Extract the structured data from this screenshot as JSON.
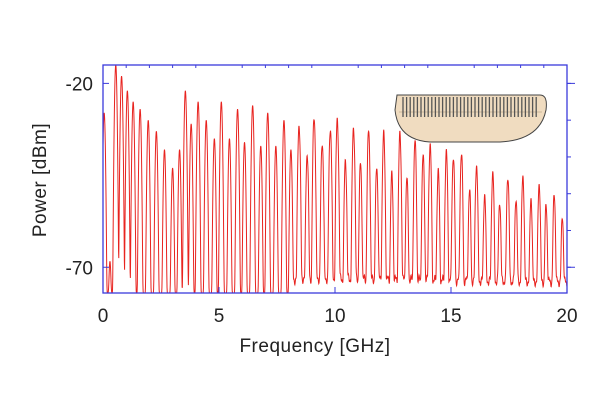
{
  "chart_data": {
    "type": "line",
    "title": "",
    "xlabel": "Frequency [GHz]",
    "ylabel": "Power [dBm]",
    "xlim": [
      0,
      20
    ],
    "ylim": [
      -77,
      -15
    ],
    "x_ticks": [
      {
        "value": 0,
        "label": "0"
      },
      {
        "value": 5,
        "label": "5"
      },
      {
        "value": 10,
        "label": "10"
      },
      {
        "value": 15,
        "label": "15"
      },
      {
        "value": 20,
        "label": "20"
      }
    ],
    "y_ticks": [
      {
        "value": -20,
        "label": "-20"
      },
      {
        "value": -70,
        "label": "-70"
      }
    ],
    "grid": false,
    "legend": "none",
    "colors": {
      "trace": "#e8231f",
      "frame": "#3a3adb",
      "comb_body": "#f0dcc0",
      "comb_teeth": "#555555"
    },
    "inset_icon": "comb-illustration-icon",
    "series": [
      {
        "peaks_x": [
          0.05,
          0.3,
          0.55,
          0.8,
          1.05,
          1.3,
          1.6,
          1.95,
          2.3,
          2.65,
          3.0,
          3.3,
          3.55,
          3.8,
          4.1,
          4.45,
          4.8,
          5.1,
          5.45,
          5.8,
          6.1,
          6.45,
          6.8,
          7.1,
          7.45,
          7.8,
          8.1,
          8.45,
          8.8,
          9.1,
          9.45,
          9.8,
          10.1,
          10.45,
          10.8,
          11.1,
          11.45,
          11.8,
          12.1,
          12.45,
          12.8,
          13.1,
          13.45,
          13.8,
          14.1,
          14.45,
          14.8,
          15.1,
          15.45,
          15.8,
          16.1,
          16.45,
          16.8,
          17.1,
          17.45,
          17.8,
          18.1,
          18.45,
          18.8,
          19.1,
          19.45,
          19.8
        ],
        "peaks_y": [
          -28,
          -69,
          -15,
          -18,
          -22,
          -25,
          -27,
          -30,
          -33,
          -38,
          -43,
          -38,
          -22,
          -31,
          -25,
          -30,
          -35,
          -25,
          -35,
          -27,
          -36,
          -26,
          -37,
          -28,
          -37,
          -30,
          -38,
          -31,
          -39,
          -29,
          -36,
          -32,
          -30,
          -41,
          -32,
          -42,
          -33,
          -43,
          -34,
          -45,
          -34,
          -46,
          -36,
          -40,
          -37,
          -44,
          -39,
          -40,
          -39,
          -49,
          -42,
          -50,
          -44,
          -52,
          -45,
          -51,
          -45,
          -51,
          -47,
          -53,
          -50,
          -56
        ],
        "noise_floor_x": [
          0,
          8.0,
          8.3,
          20
        ],
        "noise_floor_y": [
          -77,
          -77,
          -73,
          -74
        ]
      }
    ]
  }
}
